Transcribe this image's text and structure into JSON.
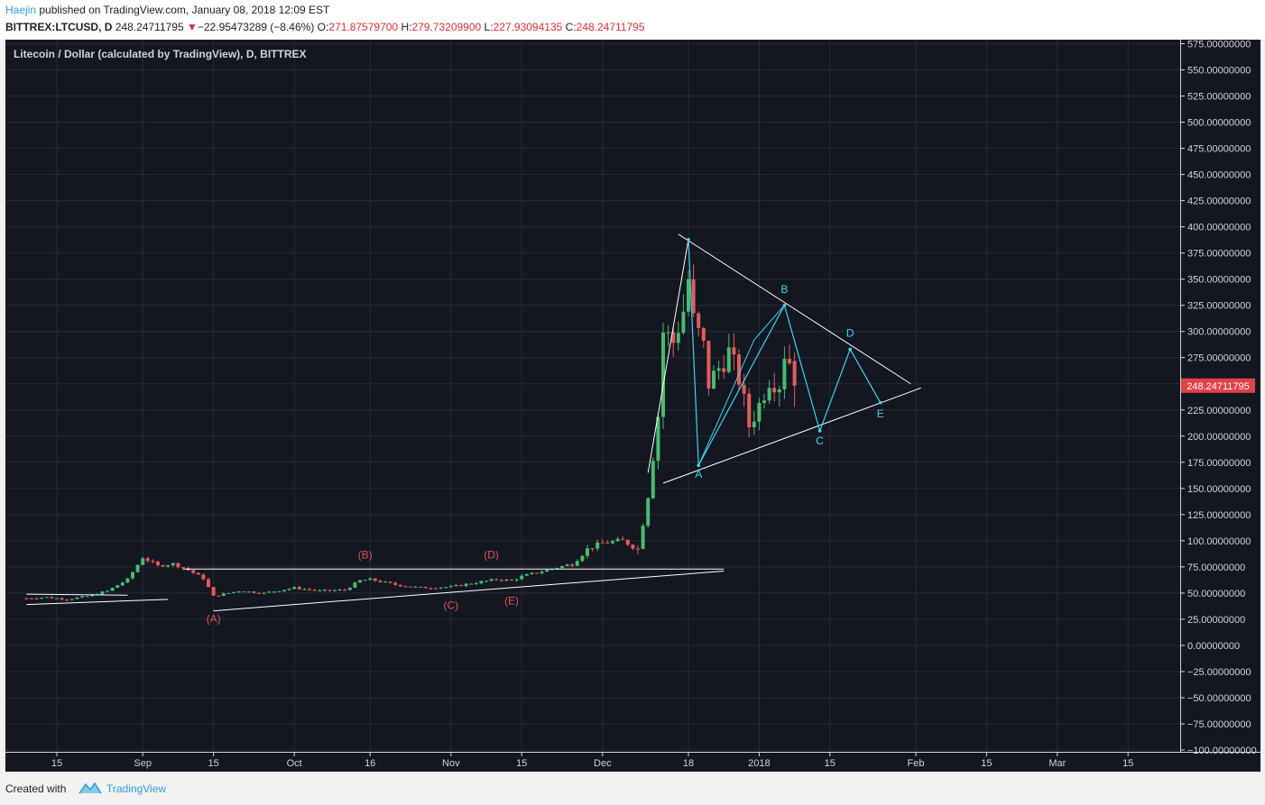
{
  "header": {
    "author": "Haejin",
    "published": "published on TradingView.com, January 08, 2018 12:09 EST",
    "symbol": "BITTREX:LTCUSD, D",
    "last": "248.24711795",
    "change_arrow": "▼",
    "change": "−22.95473289 (−8.46%)",
    "open_label": "O:",
    "open": "271.87579700",
    "high_label": "H:",
    "high": "279.73209900",
    "low_label": "L:",
    "low": "227.93094135",
    "close_label": "C:",
    "close": "248.24711795"
  },
  "chart": {
    "title": "Litecoin / Dollar (calculated by TradingView), D, BITTREX",
    "price_badge": "248.24711795"
  },
  "footer": {
    "created": "Created with",
    "brand": "TradingView"
  },
  "colors": {
    "bg": "#131722",
    "up": "#4bb96f",
    "down": "#e45b5b",
    "cyan": "#40d4e8",
    "badge": "#e0414a",
    "red_label": "#e05555"
  },
  "chart_data": {
    "type": "candlestick",
    "title": "Litecoin / Dollar (calculated by TradingView), D, BITTREX",
    "y_ticks": [
      575,
      550,
      525,
      500,
      475,
      450,
      425,
      400,
      375,
      350,
      325,
      300,
      275,
      250,
      225,
      200,
      175,
      150,
      125,
      100,
      75,
      50,
      25,
      0,
      -25,
      -50,
      -75,
      -100
    ],
    "y_tick_labels": [
      "575.00000000",
      "550.00000000",
      "525.00000000",
      "500.00000000",
      "475.00000000",
      "450.00000000",
      "425.00000000",
      "400.00000000",
      "375.00000000",
      "350.00000000",
      "325.00000000",
      "300.00000000",
      "275.00000000",
      "250.00000000",
      "225.00000000",
      "200.00000000",
      "175.00000000",
      "150.00000000",
      "125.00000000",
      "100.00000000",
      "75.00000000",
      "50.00000000",
      "25.00000000",
      "0.00000000",
      "−25.00000000",
      "−50.00000000",
      "−75.00000000",
      "−100.00000000"
    ],
    "ylim": [
      -100,
      575
    ],
    "x_ticks": [
      {
        "label": "15",
        "date": "2017-08-15"
      },
      {
        "label": "Sep",
        "date": "2017-09-01"
      },
      {
        "label": "15",
        "date": "2017-09-15"
      },
      {
        "label": "Oct",
        "date": "2017-10-01"
      },
      {
        "label": "16",
        "date": "2017-10-16"
      },
      {
        "label": "Nov",
        "date": "2017-11-01"
      },
      {
        "label": "15",
        "date": "2017-11-15"
      },
      {
        "label": "Dec",
        "date": "2017-12-01"
      },
      {
        "label": "18",
        "date": "2017-12-18"
      },
      {
        "label": "2018",
        "date": "2018-01-01"
      },
      {
        "label": "15",
        "date": "2018-01-15"
      },
      {
        "label": "Feb",
        "date": "2018-02-01"
      },
      {
        "label": "15",
        "date": "2018-02-15"
      },
      {
        "label": "Mar",
        "date": "2018-03-01"
      },
      {
        "label": "15",
        "date": "2018-03-15"
      }
    ],
    "last_price": 248.24711795,
    "series_close": [
      [
        "2017-08-09",
        45
      ],
      [
        "2017-08-13",
        46
      ],
      [
        "2017-08-17",
        44
      ],
      [
        "2017-08-21",
        47
      ],
      [
        "2017-08-25",
        52
      ],
      [
        "2017-08-29",
        63
      ],
      [
        "2017-09-01",
        84
      ],
      [
        "2017-09-04",
        76
      ],
      [
        "2017-09-07",
        78
      ],
      [
        "2017-09-10",
        72
      ],
      [
        "2017-09-13",
        64
      ],
      [
        "2017-09-15",
        47
      ],
      [
        "2017-09-20",
        52
      ],
      [
        "2017-09-25",
        50
      ],
      [
        "2017-10-01",
        55
      ],
      [
        "2017-10-06",
        52
      ],
      [
        "2017-10-11",
        53
      ],
      [
        "2017-10-14",
        62
      ],
      [
        "2017-10-16",
        63
      ],
      [
        "2017-10-21",
        58
      ],
      [
        "2017-10-26",
        55
      ],
      [
        "2017-11-01",
        56
      ],
      [
        "2017-11-06",
        60
      ],
      [
        "2017-11-10",
        63
      ],
      [
        "2017-11-13",
        62
      ],
      [
        "2017-11-15",
        66
      ],
      [
        "2017-11-20",
        72
      ],
      [
        "2017-11-25",
        78
      ],
      [
        "2017-11-28",
        92
      ],
      [
        "2017-12-01",
        98
      ],
      [
        "2017-12-05",
        100
      ],
      [
        "2017-12-08",
        92
      ],
      [
        "2017-12-10",
        145
      ],
      [
        "2017-12-12",
        220
      ],
      [
        "2017-12-13",
        300
      ],
      [
        "2017-12-15",
        290
      ],
      [
        "2017-12-17",
        320
      ],
      [
        "2017-12-18",
        350
      ],
      [
        "2017-12-19",
        310
      ],
      [
        "2017-12-21",
        285
      ],
      [
        "2017-12-22",
        250
      ],
      [
        "2017-12-24",
        265
      ],
      [
        "2017-12-26",
        280
      ],
      [
        "2017-12-28",
        255
      ],
      [
        "2017-12-30",
        210
      ],
      [
        "2018-01-01",
        230
      ],
      [
        "2018-01-03",
        255
      ],
      [
        "2018-01-05",
        250
      ],
      [
        "2018-01-06",
        280
      ],
      [
        "2018-01-07",
        271.88
      ],
      [
        "2018-01-08",
        248.25
      ]
    ],
    "annotations": [
      {
        "text": "(A)",
        "date": "2017-09-15",
        "value": 22
      },
      {
        "text": "(B)",
        "date": "2017-10-15",
        "value": 83
      },
      {
        "text": "(C)",
        "date": "2017-11-01",
        "value": 35
      },
      {
        "text": "(D)",
        "date": "2017-11-09",
        "value": 83
      },
      {
        "text": "(E)",
        "date": "2017-11-13",
        "value": 39
      },
      {
        "text": "A",
        "date": "2017-12-20",
        "value": 160
      },
      {
        "text": "B",
        "date": "2018-01-06",
        "value": 337
      },
      {
        "text": "C",
        "date": "2018-01-13",
        "value": 192
      },
      {
        "text": "D",
        "date": "2018-01-19",
        "value": 295
      },
      {
        "text": "E",
        "date": "2018-01-25",
        "value": 218
      }
    ],
    "wave_path": [
      [
        "2017-12-18",
        388
      ],
      [
        "2017-12-20",
        172
      ],
      [
        "2018-01-06",
        325
      ],
      [
        "2018-01-13",
        205
      ],
      [
        "2018-01-19",
        283
      ],
      [
        "2018-01-25",
        232
      ]
    ],
    "triangle_upper": [
      [
        "2017-12-16",
        393
      ],
      [
        "2018-01-31",
        250
      ]
    ],
    "triangle_lower": [
      [
        "2017-12-13",
        155
      ],
      [
        "2018-02-02",
        246
      ]
    ],
    "old_upper": [
      [
        "2017-09-09",
        73
      ],
      [
        "2017-12-25",
        73
      ]
    ],
    "old_lower": [
      [
        "2017-09-15",
        33
      ],
      [
        "2017-12-25",
        71
      ]
    ]
  }
}
